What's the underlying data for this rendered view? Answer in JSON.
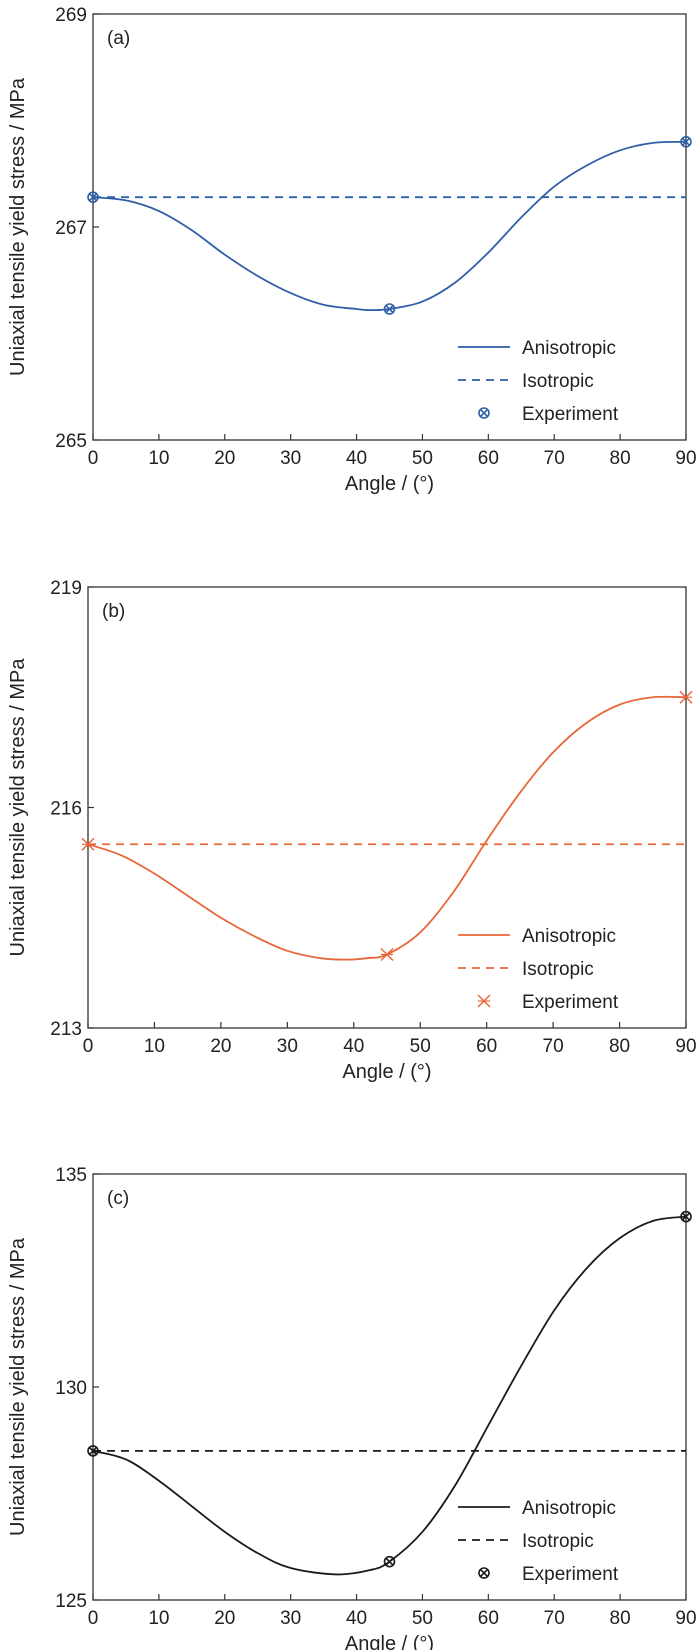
{
  "chart_data": [
    {
      "type": "line",
      "panel_label": "(a)",
      "xlabel": "Angle / (°)",
      "ylabel": "Uniaxial tensile yield stress / MPa",
      "xlim": [
        0,
        90
      ],
      "ylim": [
        265,
        269
      ],
      "xticks": [
        0,
        10,
        20,
        30,
        40,
        50,
        60,
        70,
        80,
        90
      ],
      "yticks": [
        265,
        267,
        269
      ],
      "color": "#2e5fa8",
      "marker": "circle-x",
      "series": [
        {
          "name": "Anisotropic",
          "style": "solid",
          "x": [
            0,
            5,
            10,
            15,
            20,
            25,
            30,
            35,
            40,
            42,
            45,
            50,
            55,
            60,
            65,
            70,
            75,
            80,
            85,
            90
          ],
          "y": [
            267.28,
            267.25,
            267.15,
            266.97,
            266.74,
            266.54,
            266.38,
            266.27,
            266.23,
            266.22,
            266.23,
            266.3,
            266.48,
            266.76,
            267.09,
            267.38,
            267.58,
            267.72,
            267.79,
            267.8
          ]
        },
        {
          "name": "Isotropic",
          "style": "dashed",
          "x": [
            0,
            90
          ],
          "y": [
            267.28,
            267.28
          ]
        },
        {
          "name": "Experiment",
          "style": "marker",
          "x": [
            0,
            45,
            90
          ],
          "y": [
            267.28,
            266.23,
            267.8
          ]
        }
      ],
      "legend": "bottom-right"
    },
    {
      "type": "line",
      "panel_label": "(b)",
      "xlabel": "Angle / (°)",
      "ylabel": "Uniaxial tensile yield stress / MPa",
      "xlim": [
        0,
        90
      ],
      "ylim": [
        213,
        219
      ],
      "xticks": [
        0,
        10,
        20,
        30,
        40,
        50,
        60,
        70,
        80,
        90
      ],
      "yticks": [
        213,
        216,
        219
      ],
      "color": "#e8673a",
      "marker": "asterisk",
      "series": [
        {
          "name": "Anisotropic",
          "style": "solid",
          "x": [
            0,
            5,
            10,
            15,
            20,
            25,
            30,
            35,
            39,
            42,
            45,
            50,
            55,
            60,
            65,
            70,
            75,
            80,
            85,
            90
          ],
          "y": [
            215.5,
            215.35,
            215.1,
            214.8,
            214.5,
            214.25,
            214.05,
            213.95,
            213.93,
            213.95,
            214.0,
            214.3,
            214.85,
            215.55,
            216.2,
            216.75,
            217.15,
            217.4,
            217.5,
            217.5
          ]
        },
        {
          "name": "Isotropic",
          "style": "dashed",
          "x": [
            0,
            90
          ],
          "y": [
            215.5,
            215.5
          ]
        },
        {
          "name": "Experiment",
          "style": "marker",
          "x": [
            0,
            45,
            90
          ],
          "y": [
            215.5,
            214.0,
            217.5
          ]
        }
      ],
      "legend": "bottom-right"
    },
    {
      "type": "line",
      "panel_label": "(c)",
      "xlabel": "Angle / (°)",
      "ylabel": "Uniaxial tensile yield stress / MPa",
      "xlim": [
        0,
        90
      ],
      "ylim": [
        125,
        135
      ],
      "xticks": [
        0,
        10,
        20,
        30,
        40,
        50,
        60,
        70,
        80,
        90
      ],
      "yticks": [
        125,
        130,
        135
      ],
      "color": "#1a1a1a",
      "marker": "circle-x",
      "series": [
        {
          "name": "Anisotropic",
          "style": "solid",
          "x": [
            0,
            5,
            10,
            15,
            20,
            25,
            30,
            37,
            42,
            45,
            50,
            55,
            60,
            65,
            70,
            75,
            80,
            85,
            90
          ],
          "y": [
            128.5,
            128.3,
            127.8,
            127.2,
            126.6,
            126.1,
            125.75,
            125.6,
            125.7,
            125.9,
            126.6,
            127.7,
            129.1,
            130.5,
            131.8,
            132.8,
            133.5,
            133.9,
            134.0
          ]
        },
        {
          "name": "Isotropic",
          "style": "dashed",
          "x": [
            0,
            90
          ],
          "y": [
            128.5,
            128.5
          ]
        },
        {
          "name": "Experiment",
          "style": "marker",
          "x": [
            0,
            45,
            90
          ],
          "y": [
            128.5,
            125.9,
            134.0
          ]
        }
      ],
      "legend": "bottom-right"
    }
  ]
}
